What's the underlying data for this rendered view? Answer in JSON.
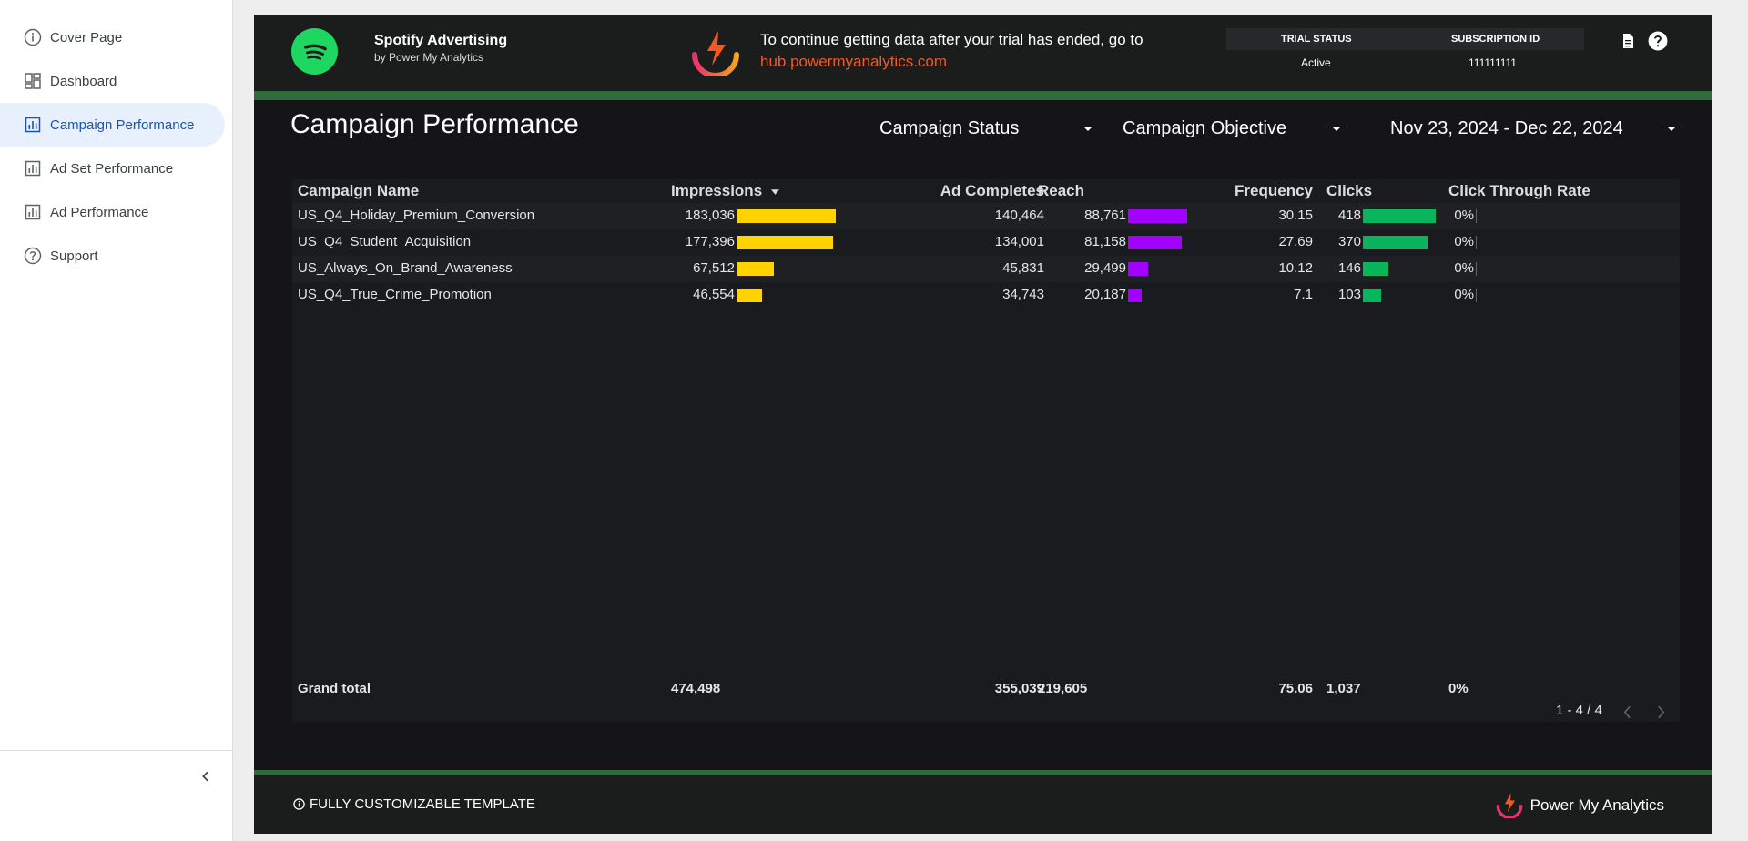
{
  "sidebar": {
    "items": [
      {
        "label": "Cover Page",
        "icon": "info-icon",
        "active": false
      },
      {
        "label": "Dashboard",
        "icon": "dashboard-icon",
        "active": false
      },
      {
        "label": "Campaign Performance",
        "icon": "chart-icon",
        "active": true
      },
      {
        "label": "Ad Set Performance",
        "icon": "chart-icon",
        "active": false
      },
      {
        "label": "Ad Performance",
        "icon": "chart-icon",
        "active": false
      },
      {
        "label": "Support",
        "icon": "help-icon",
        "active": false
      }
    ],
    "collapse_icon": "chevron-left-icon"
  },
  "header": {
    "brand_title": "Spotify Advertising",
    "brand_subtitle": "by Power My Analytics",
    "trial_message": "To continue getting data after your trial has ended, go to",
    "trial_link": "hub.powermyanalytics.com",
    "trial_status_label": "TRIAL STATUS",
    "trial_status_value": "Active",
    "subscription_label": "SUBSCRIPTION ID",
    "subscription_value": "111111111"
  },
  "page": {
    "title": "Campaign Performance"
  },
  "filters": {
    "campaign_status": "Campaign Status",
    "campaign_objective": "Campaign Objective",
    "date_range": "Nov 23, 2024 - Dec 22, 2024"
  },
  "table": {
    "columns": {
      "campaign_name": "Campaign Name",
      "impressions": "Impressions",
      "ad_completes": "Ad Completes",
      "reach": "Reach",
      "frequency": "Frequency",
      "clicks": "Clicks",
      "ctr": "Click Through Rate"
    },
    "rows": [
      {
        "campaign_name": "US_Q4_Holiday_Premium_Conversion",
        "impressions": "183,036",
        "ad_completes": "140,464",
        "reach": "88,761",
        "frequency": "30.15",
        "clicks": "418",
        "ctr": "0%"
      },
      {
        "campaign_name": "US_Q4_Student_Acquisition",
        "impressions": "177,396",
        "ad_completes": "134,001",
        "reach": "81,158",
        "frequency": "27.69",
        "clicks": "370",
        "ctr": "0%"
      },
      {
        "campaign_name": "US_Always_On_Brand_Awareness",
        "impressions": "67,512",
        "ad_completes": "45,831",
        "reach": "29,499",
        "frequency": "10.12",
        "clicks": "146",
        "ctr": "0%"
      },
      {
        "campaign_name": "US_Q4_True_Crime_Promotion",
        "impressions": "46,554",
        "ad_completes": "34,743",
        "reach": "20,187",
        "frequency": "7.1",
        "clicks": "103",
        "ctr": "0%"
      }
    ],
    "totals": {
      "label": "Grand total",
      "impressions": "474,498",
      "ad_completes": "355,039",
      "reach": "219,605",
      "frequency": "75.06",
      "clicks": "1,037",
      "ctr": "0%"
    },
    "pagination": "1 - 4 / 4",
    "bar_colors": {
      "impressions": "#ffd200",
      "reach": "#a200ff",
      "clicks": "#08b45c"
    }
  },
  "footer": {
    "note": "FULLY CUSTOMIZABLE TEMPLATE",
    "brand": "Power My Analytics"
  }
}
